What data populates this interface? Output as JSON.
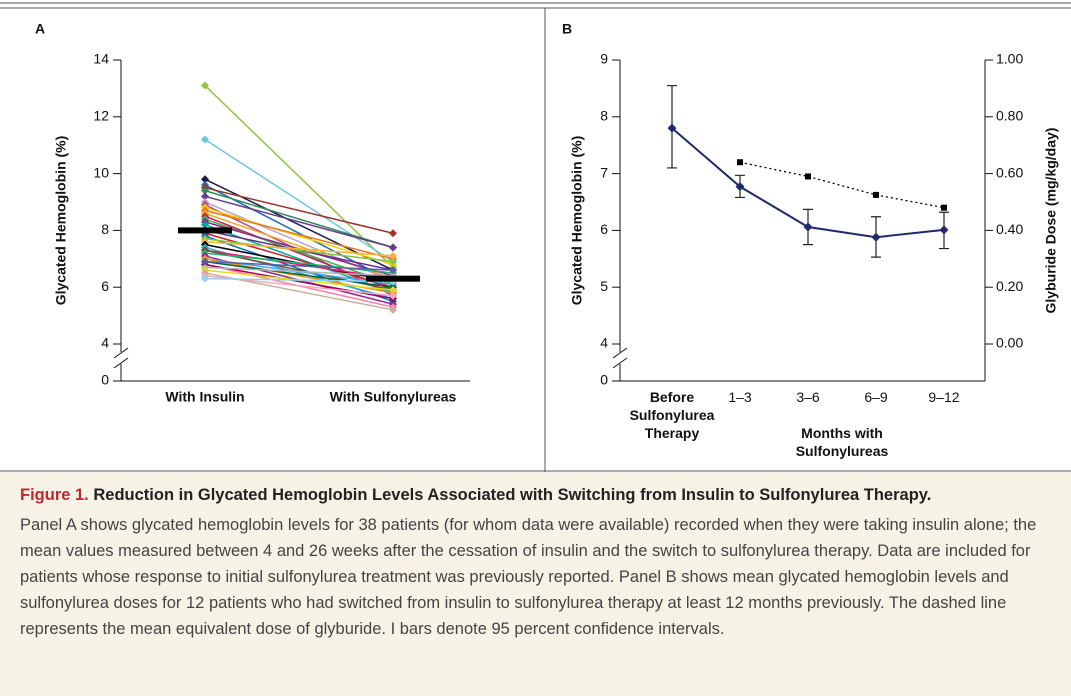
{
  "chart_data": [
    {
      "type": "slope",
      "panel_label": "A",
      "ylabel": "Glycated Hemoglobin (%)",
      "categories": [
        "With Insulin",
        "With Sulfonylureas"
      ],
      "ylim": [
        4,
        14
      ],
      "yticks": [
        0,
        4,
        6,
        8,
        10,
        12,
        14
      ],
      "axis_break": true,
      "series": [
        {
          "color": "#8dc63f",
          "values": [
            13.1,
            6.7
          ]
        },
        {
          "color": "#6cc5e0",
          "values": [
            11.2,
            6.9
          ]
        },
        {
          "color": "#1a1a4e",
          "values": [
            9.8,
            6.6
          ]
        },
        {
          "color": "#1f6fb5",
          "values": [
            9.6,
            6.2
          ]
        },
        {
          "color": "#a0302a",
          "values": [
            9.5,
            7.9
          ]
        },
        {
          "color": "#2e8b57",
          "values": [
            9.4,
            7.4
          ]
        },
        {
          "color": "#6b3a8c",
          "values": [
            9.2,
            7.4
          ]
        },
        {
          "color": "#c0a0d0",
          "values": [
            9.0,
            6.2
          ]
        },
        {
          "color": "#b0508a",
          "values": [
            8.9,
            5.7
          ]
        },
        {
          "color": "#f0d000",
          "values": [
            8.8,
            6.8
          ]
        },
        {
          "color": "#e87722",
          "values": [
            8.7,
            7.0
          ]
        },
        {
          "color": "#f5a623",
          "values": [
            8.6,
            6.3
          ]
        },
        {
          "color": "#d4145a",
          "values": [
            8.5,
            5.9
          ]
        },
        {
          "color": "#39b54a",
          "values": [
            8.4,
            6.1
          ]
        },
        {
          "color": "#92278f",
          "values": [
            8.3,
            6.4
          ]
        },
        {
          "color": "#00a99d",
          "values": [
            8.2,
            5.8
          ]
        },
        {
          "color": "#662d91",
          "values": [
            8.0,
            6.6
          ]
        },
        {
          "color": "#c1272d",
          "values": [
            7.9,
            6.0
          ]
        },
        {
          "color": "#0071bc",
          "values": [
            7.8,
            5.5
          ]
        },
        {
          "color": "#8cc63f",
          "values": [
            7.7,
            6.9
          ]
        },
        {
          "color": "#fbb03b",
          "values": [
            7.6,
            7.1
          ]
        },
        {
          "color": "#000000",
          "values": [
            7.5,
            6.2
          ]
        },
        {
          "color": "#29abe2",
          "values": [
            7.4,
            5.6
          ]
        },
        {
          "color": "#ed1e79",
          "values": [
            7.3,
            6.3
          ]
        },
        {
          "color": "#754c24",
          "values": [
            7.3,
            5.9
          ]
        },
        {
          "color": "#22b573",
          "values": [
            7.2,
            6.5
          ]
        },
        {
          "color": "#93278f",
          "values": [
            7.1,
            5.4
          ]
        },
        {
          "color": "#3fa9f5",
          "values": [
            7.0,
            6.1
          ]
        },
        {
          "color": "#f7931e",
          "values": [
            7.0,
            5.8
          ]
        },
        {
          "color": "#006837",
          "values": [
            6.9,
            6.0
          ]
        },
        {
          "color": "#ff7bac",
          "values": [
            6.8,
            5.3
          ]
        },
        {
          "color": "#9e005d",
          "values": [
            6.8,
            5.6
          ]
        },
        {
          "color": "#b3b3b3",
          "values": [
            6.7,
            6.4
          ]
        },
        {
          "color": "#d9e021",
          "values": [
            6.6,
            5.9
          ]
        },
        {
          "color": "#c7b299",
          "values": [
            6.5,
            5.2
          ]
        },
        {
          "color": "#f4a7b9",
          "values": [
            6.4,
            5.7
          ]
        },
        {
          "color": "#8fd3f0",
          "values": [
            6.3,
            6.2
          ]
        },
        {
          "color": "#5b5ea6",
          "values": [
            6.9,
            6.6
          ]
        }
      ],
      "means": [
        8.0,
        6.3
      ],
      "mean_color": "#000000"
    },
    {
      "type": "line",
      "panel_label": "B",
      "ylabel": "Glycated Hemoglobin (%)",
      "y2label": "Glyburide Dose (mg/kg/day)",
      "xlabel": "Months with Sulfonylureas",
      "categories": [
        "Before Sulfonylurea Therapy",
        "1–3",
        "3–6",
        "6–9",
        "9–12"
      ],
      "ylim": [
        4,
        9
      ],
      "yticks": [
        0,
        4,
        5,
        6,
        7,
        8,
        9
      ],
      "axis_break": true,
      "y2lim": [
        0,
        1
      ],
      "y2ticks": [
        {
          "value": 0,
          "label": "0.00"
        },
        {
          "value": 0.2,
          "label": "0.20"
        },
        {
          "value": 0.4,
          "label": "0.40"
        },
        {
          "value": 0.6,
          "label": "0.60"
        },
        {
          "value": 0.8,
          "label": "0.80"
        },
        {
          "value": 1,
          "label": "1.00"
        }
      ],
      "series": [
        {
          "color": "#1f2a6e",
          "values": [
            7.8,
            6.77,
            6.06,
            5.88,
            6.01
          ],
          "ci_low": [
            7.1,
            6.58,
            5.75,
            5.53,
            5.68
          ],
          "ci_high": [
            8.55,
            6.97,
            6.37,
            6.24,
            6.32
          ]
        },
        {
          "color": "#000000",
          "dashed": true,
          "axis": "y2",
          "values": [
            null,
            0.64,
            0.59,
            0.525,
            0.48
          ]
        }
      ]
    }
  ],
  "caption": {
    "label": "Figure 1.",
    "title": "Reduction in Glycated Hemoglobin Levels Associated with Switching from Insulin to Sulfonylurea Therapy.",
    "body": "Panel A shows glycated hemoglobin levels for 38 patients (for whom data were available) recorded when they were taking insulin alone; the mean values measured between 4 and 26 weeks after the cessation of insulin and the switch to sulfonylurea therapy. Data are included for patients whose response to initial sulfonylurea treatment was previously reported. Panel B shows mean glycated hemoglobin levels and sulfonylurea doses for 12 patients who had switched from insulin to sulfonylurea therapy at least 12 months previously. The dashed line represents the mean equivalent dose of glyburide. I bars denote 95 percent confidence intervals."
  }
}
